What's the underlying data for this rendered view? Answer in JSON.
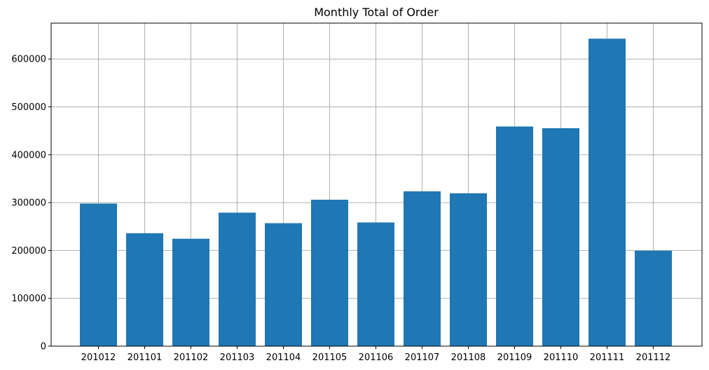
{
  "chart_data": {
    "type": "bar",
    "title": "Monthly Total of Order",
    "xlabel": "",
    "ylabel": "",
    "categories": [
      "201012",
      "201101",
      "201102",
      "201103",
      "201104",
      "201105",
      "201106",
      "201107",
      "201108",
      "201109",
      "201110",
      "201111",
      "201112"
    ],
    "values": [
      298000,
      236000,
      224500,
      279000,
      257000,
      306000,
      258500,
      323500,
      319500,
      459000,
      455500,
      642500,
      199500
    ],
    "ylim": [
      0,
      675000
    ],
    "yticks": [
      0,
      100000,
      200000,
      300000,
      400000,
      500000,
      600000
    ],
    "ytick_labels": [
      "0",
      "100000",
      "200000",
      "300000",
      "400000",
      "500000",
      "600000"
    ],
    "grid": true,
    "bar_color": "#1f77b4",
    "grid_color": "#b0b0b0"
  }
}
